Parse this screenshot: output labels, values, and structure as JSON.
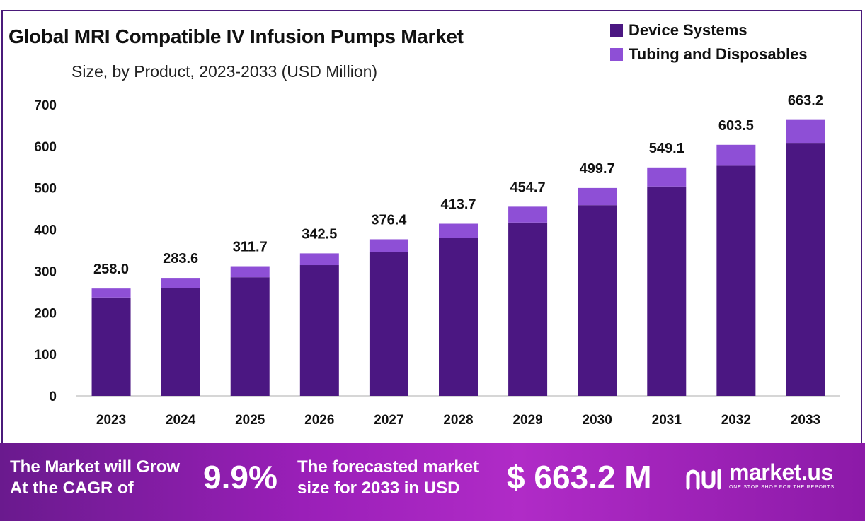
{
  "chart_data": {
    "type": "bar",
    "stacked": true,
    "title": "Global MRI Compatible IV Infusion Pumps Market",
    "subtitle": "Size, by Product, 2023-2033 (USD Million)",
    "categories": [
      "2023",
      "2024",
      "2025",
      "2026",
      "2027",
      "2028",
      "2029",
      "2030",
      "2031",
      "2032",
      "2033"
    ],
    "series": [
      {
        "name": "Device Systems",
        "color": "#4b1782",
        "values": [
          236.5,
          259.8,
          285.1,
          314.3,
          345.1,
          378.9,
          416.6,
          458.4,
          503.3,
          553.2,
          608.1
        ]
      },
      {
        "name": "Tubing and Disposables",
        "color": "#8e4fd6",
        "values": [
          21.5,
          23.8,
          26.6,
          28.2,
          31.3,
          34.8,
          38.1,
          41.3,
          45.8,
          50.3,
          55.1
        ]
      }
    ],
    "totals": [
      "258.0",
      "283.6",
      "311.7",
      "342.5",
      "376.4",
      "413.7",
      "454.7",
      "499.7",
      "549.1",
      "603.5",
      "663.2"
    ],
    "ylim": [
      0,
      700
    ],
    "yticks": [
      "0",
      "100",
      "200",
      "300",
      "400",
      "500",
      "600",
      "700"
    ],
    "grid": false,
    "legend_position": "top-right"
  },
  "banner": {
    "cagr_text_line1": "The Market will Grow",
    "cagr_text_line2": "At the CAGR of",
    "cagr_value": "9.9%",
    "forecast_text_line1": "The forecasted market",
    "forecast_text_line2": "size for 2033 in USD",
    "forecast_value": "$ 663.2 M",
    "brand": "market.us",
    "tagline": "ONE STOP SHOP FOR THE REPORTS"
  },
  "colors": {
    "frame": "#4a1a7a",
    "banner": "#9a1fb8"
  }
}
